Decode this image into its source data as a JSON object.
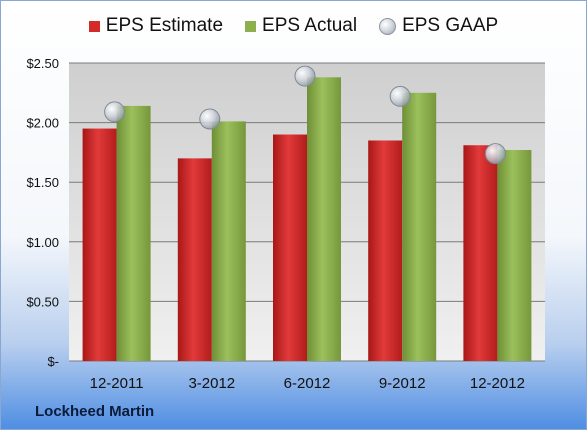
{
  "chart_data": {
    "type": "bar",
    "categories": [
      "12-2011",
      "3-2012",
      "6-2012",
      "9-2012",
      "12-2012"
    ],
    "series": [
      {
        "name": "EPS Estimate",
        "values": [
          1.95,
          1.7,
          1.9,
          1.85,
          1.81
        ],
        "color": "#d42a2a"
      },
      {
        "name": "EPS Actual",
        "values": [
          2.14,
          2.01,
          2.38,
          2.25,
          1.77
        ],
        "color": "#8cb04e"
      }
    ],
    "gaap": {
      "name": "EPS GAAP",
      "values": [
        2.09,
        2.03,
        2.39,
        2.22,
        1.74
      ]
    },
    "ylim": [
      0,
      2.5
    ],
    "y_ticks": [
      {
        "value": 0,
        "label": "$-"
      },
      {
        "value": 0.5,
        "label": "$0.50"
      },
      {
        "value": 1.0,
        "label": "$1.00"
      },
      {
        "value": 1.5,
        "label": "$1.50"
      },
      {
        "value": 2.0,
        "label": "$2.00"
      },
      {
        "value": 2.5,
        "label": "$2.50"
      }
    ],
    "legend_position": "top",
    "grid": true
  },
  "footer": {
    "company": "Lockheed Martin"
  }
}
